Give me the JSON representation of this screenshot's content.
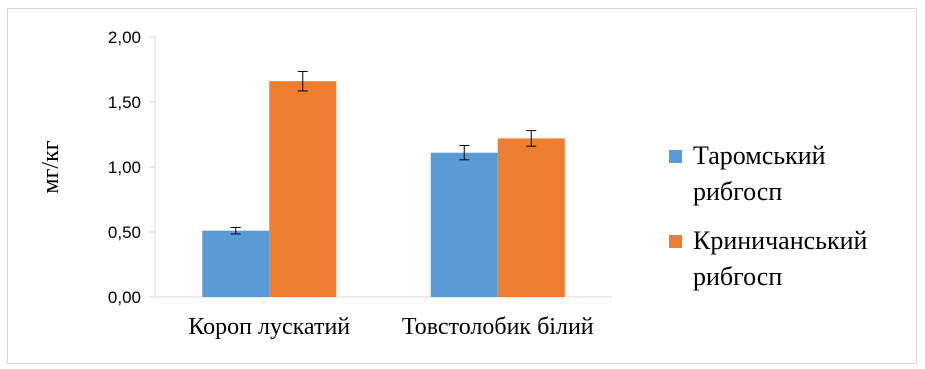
{
  "chart_data": {
    "type": "bar",
    "title": "",
    "xlabel": "",
    "ylabel": "мг/кг",
    "categories": [
      "Короп лускатий",
      "Товстолобик білий"
    ],
    "series": [
      {
        "name_lines": [
          "Таромський",
          "рибгосп"
        ],
        "color": "#5b9bd5",
        "values": [
          0.51,
          1.11
        ],
        "errors": [
          0.025,
          0.055
        ]
      },
      {
        "name_lines": [
          "Криничанський",
          "рибгосп"
        ],
        "color": "#ed7d31",
        "values": [
          1.66,
          1.22
        ],
        "errors": [
          0.075,
          0.06
        ]
      }
    ],
    "ylim": [
      0,
      2
    ],
    "yticks": [
      "0,00",
      "0,50",
      "1,00",
      "1,50",
      "2,00"
    ],
    "ytick_values": [
      0,
      0.5,
      1.0,
      1.5,
      2.0
    ],
    "grid": false,
    "legend_position": "right",
    "error_bars": true
  }
}
